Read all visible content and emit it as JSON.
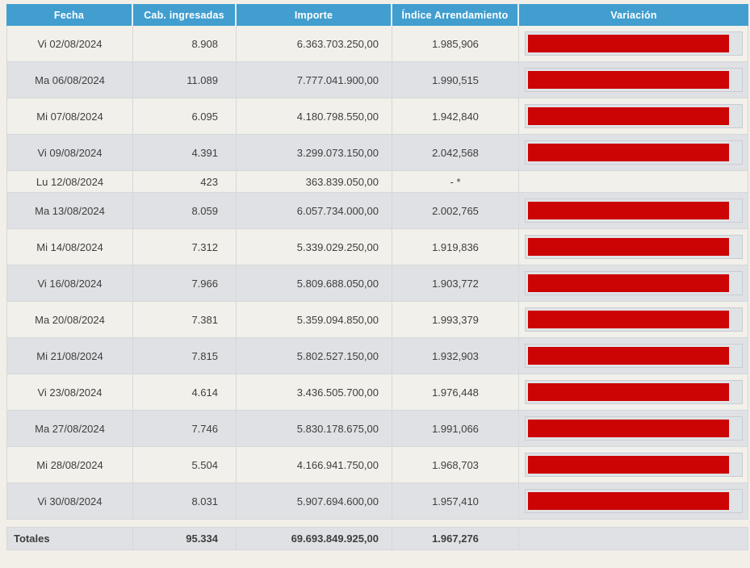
{
  "table": {
    "columns": [
      {
        "label": "Fecha"
      },
      {
        "label": "Cab. ingresadas"
      },
      {
        "label": "Importe"
      },
      {
        "label": "Índice Arrendamiento"
      },
      {
        "label": "Variación"
      }
    ],
    "variacion_bar_pct": 95,
    "rows": [
      {
        "fecha": "Vi 02/08/2024",
        "cab": "8.908",
        "importe": "6.363.703.250,00",
        "indice": "1.985,906",
        "bar": true
      },
      {
        "fecha": "Ma 06/08/2024",
        "cab": "11.089",
        "importe": "7.777.041.900,00",
        "indice": "1.990,515",
        "bar": true
      },
      {
        "fecha": "Mi 07/08/2024",
        "cab": "6.095",
        "importe": "4.180.798.550,00",
        "indice": "1.942,840",
        "bar": true
      },
      {
        "fecha": "Vi 09/08/2024",
        "cab": "4.391",
        "importe": "3.299.073.150,00",
        "indice": "2.042,568",
        "bar": true
      },
      {
        "fecha": "Lu 12/08/2024",
        "cab": "423",
        "importe": "363.839.050,00",
        "indice": "- *",
        "bar": false
      },
      {
        "fecha": "Ma 13/08/2024",
        "cab": "8.059",
        "importe": "6.057.734.000,00",
        "indice": "2.002,765",
        "bar": true
      },
      {
        "fecha": "Mi 14/08/2024",
        "cab": "7.312",
        "importe": "5.339.029.250,00",
        "indice": "1.919,836",
        "bar": true
      },
      {
        "fecha": "Vi 16/08/2024",
        "cab": "7.966",
        "importe": "5.809.688.050,00",
        "indice": "1.903,772",
        "bar": true
      },
      {
        "fecha": "Ma 20/08/2024",
        "cab": "7.381",
        "importe": "5.359.094.850,00",
        "indice": "1.993,379",
        "bar": true
      },
      {
        "fecha": "Mi 21/08/2024",
        "cab": "7.815",
        "importe": "5.802.527.150,00",
        "indice": "1.932,903",
        "bar": true
      },
      {
        "fecha": "Vi 23/08/2024",
        "cab": "4.614",
        "importe": "3.436.505.700,00",
        "indice": "1.976,448",
        "bar": true
      },
      {
        "fecha": "Ma 27/08/2024",
        "cab": "7.746",
        "importe": "5.830.178.675,00",
        "indice": "1.991,066",
        "bar": true
      },
      {
        "fecha": "Mi 28/08/2024",
        "cab": "5.504",
        "importe": "4.166.941.750,00",
        "indice": "1.968,703",
        "bar": true
      },
      {
        "fecha": "Vi 30/08/2024",
        "cab": "8.031",
        "importe": "5.907.694.600,00",
        "indice": "1.957,410",
        "bar": true
      }
    ],
    "totals": {
      "label": "Totales",
      "cab": "95.334",
      "importe": "69.693.849.925,00",
      "indice": "1.967,276"
    }
  },
  "colors": {
    "page_bg": "#f2efe9",
    "header_bg": "#419ecf",
    "header_text": "#ffffff",
    "row_light": "#f2f0ea",
    "row_dark": "#dfe1e4",
    "text": "#3e3e3e",
    "grid_line": "#d5d7d9",
    "bar_fill": "#cc0404",
    "bar_track": "#e0e3e6",
    "bar_border": "#c8ccd1"
  }
}
